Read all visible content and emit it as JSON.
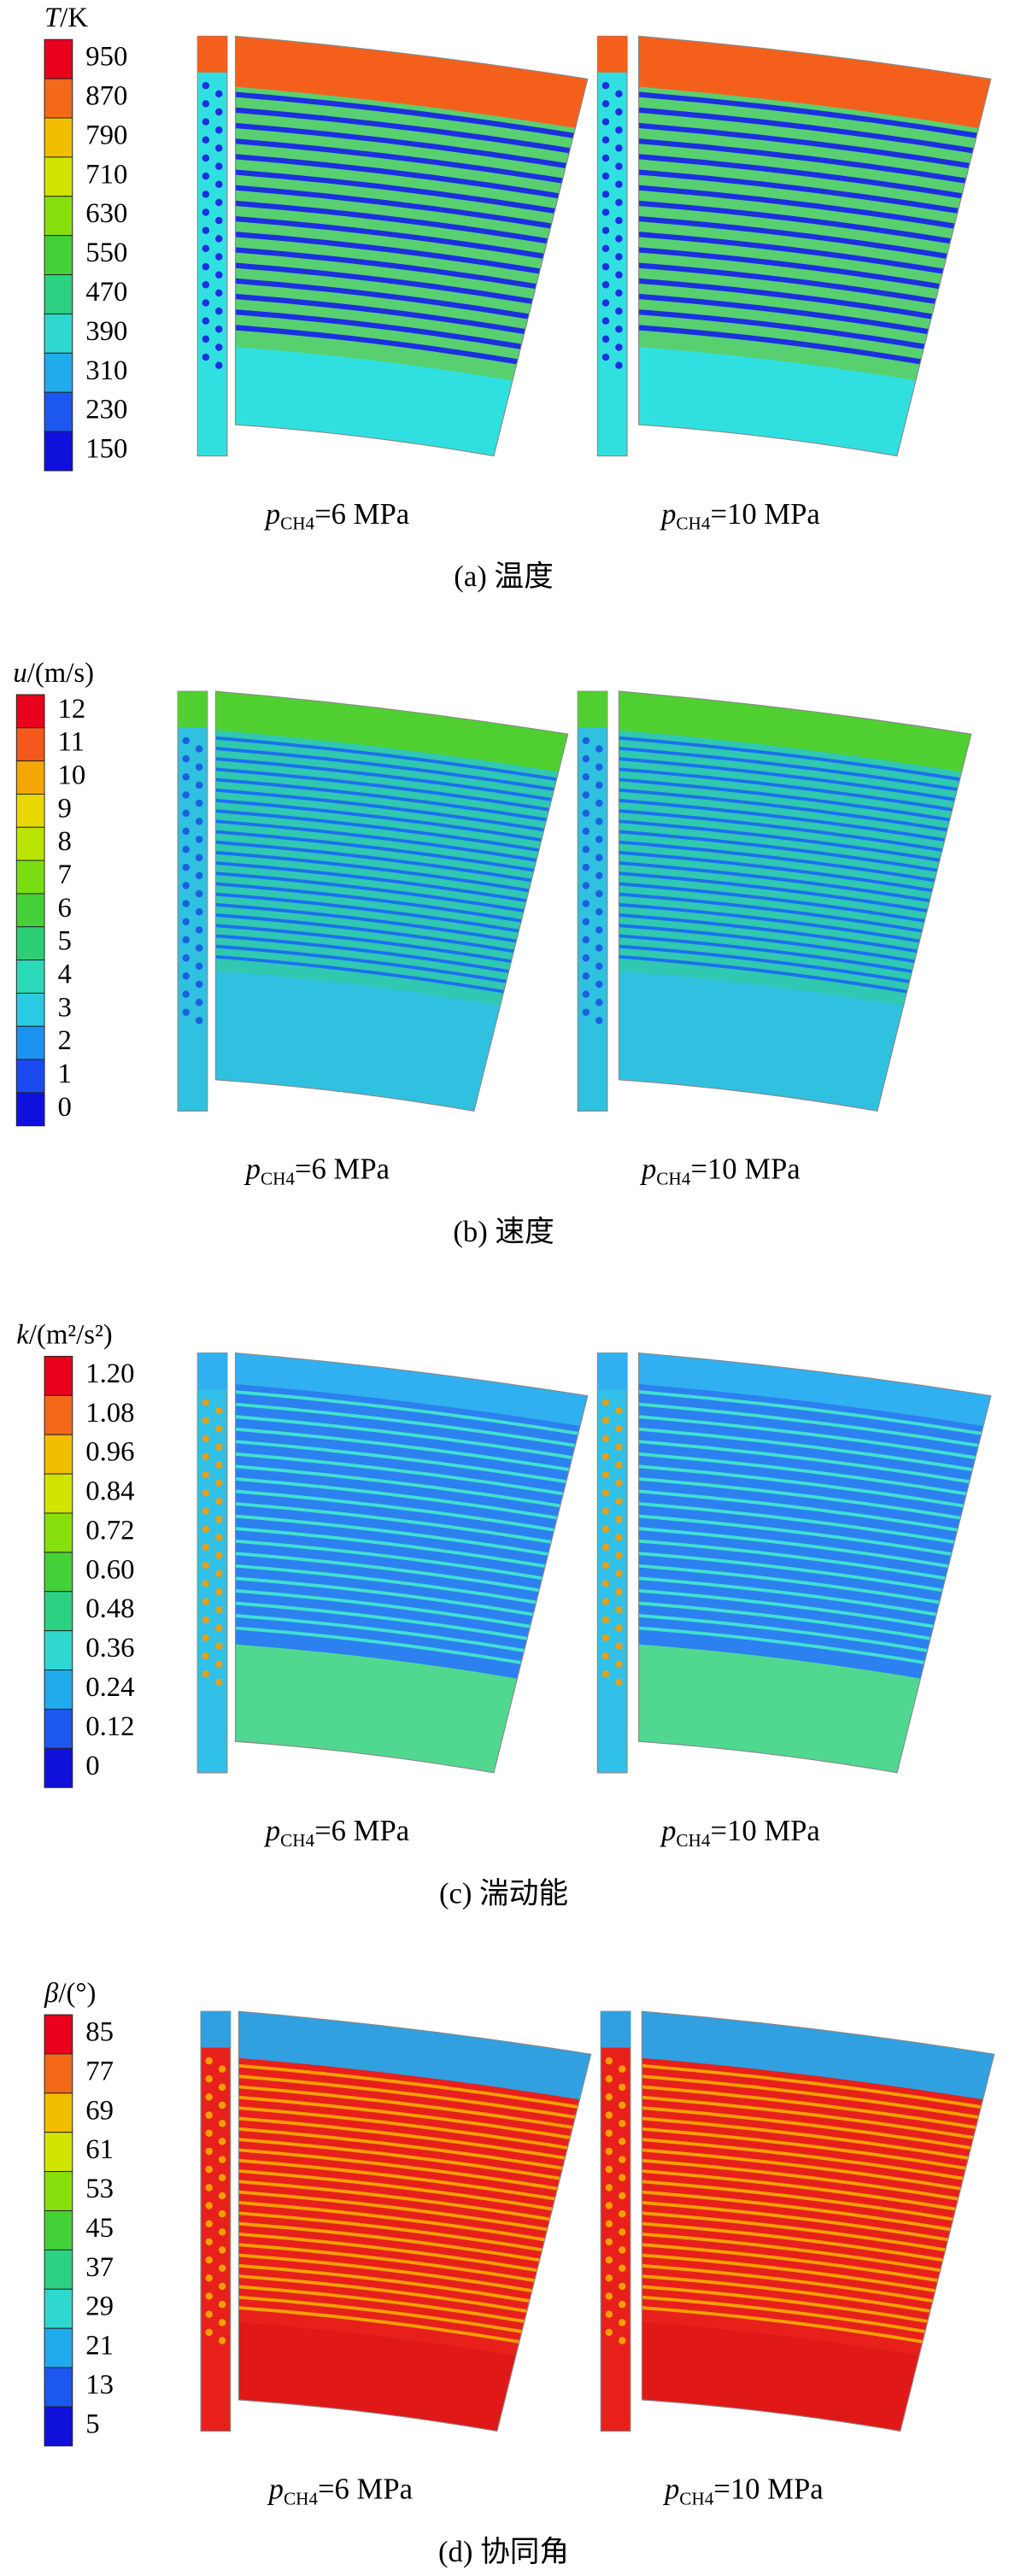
{
  "panels": [
    {
      "legend": {
        "title": {
          "symbol": "T",
          "unit": "/K"
        },
        "labels": [
          "950",
          "870",
          "790",
          "710",
          "630",
          "550",
          "470",
          "390",
          "310",
          "230",
          "150"
        ]
      },
      "subcaptions": [
        {
          "symbol": "p",
          "subscript": "CH4",
          "text": "=6 MPa"
        },
        {
          "symbol": "p",
          "subscript": "CH4",
          "text": "=10 MPa"
        }
      ],
      "caption": "(a) 温度"
    },
    {
      "legend": {
        "title": {
          "symbol": "u",
          "unit": "/(m/s)"
        },
        "labels": [
          "12",
          "11",
          "10",
          "9",
          "8",
          "7",
          "6",
          "5",
          "4",
          "3",
          "2",
          "1",
          "0"
        ]
      },
      "subcaptions": [
        {
          "symbol": "p",
          "subscript": "CH4",
          "text": "=6 MPa"
        },
        {
          "symbol": "p",
          "subscript": "CH4",
          "text": "=10 MPa"
        }
      ],
      "caption": "(b) 速度"
    },
    {
      "legend": {
        "title": {
          "symbol": "k",
          "unit": "/(m²/s²)"
        },
        "labels": [
          "1.20",
          "1.08",
          "0.96",
          "0.84",
          "0.72",
          "0.60",
          "0.48",
          "0.36",
          "0.24",
          "0.12",
          "0"
        ]
      },
      "subcaptions": [
        {
          "symbol": "p",
          "subscript": "CH4",
          "text": "=6 MPa"
        },
        {
          "symbol": "p",
          "subscript": "CH4",
          "text": "=10 MPa"
        }
      ],
      "caption": "(c) 湍动能"
    },
    {
      "legend": {
        "title": {
          "symbol": "β",
          "unit": "/(°)"
        },
        "labels": [
          "85",
          "77",
          "69",
          "61",
          "53",
          "45",
          "37",
          "29",
          "21",
          "13",
          "5"
        ]
      },
      "subcaptions": [
        {
          "symbol": "p",
          "subscript": "CH4",
          "text": "=6 MPa"
        },
        {
          "symbol": "p",
          "subscript": "CH4",
          "text": "=10 MPa"
        }
      ],
      "caption": "(d) 协同角"
    }
  ]
}
